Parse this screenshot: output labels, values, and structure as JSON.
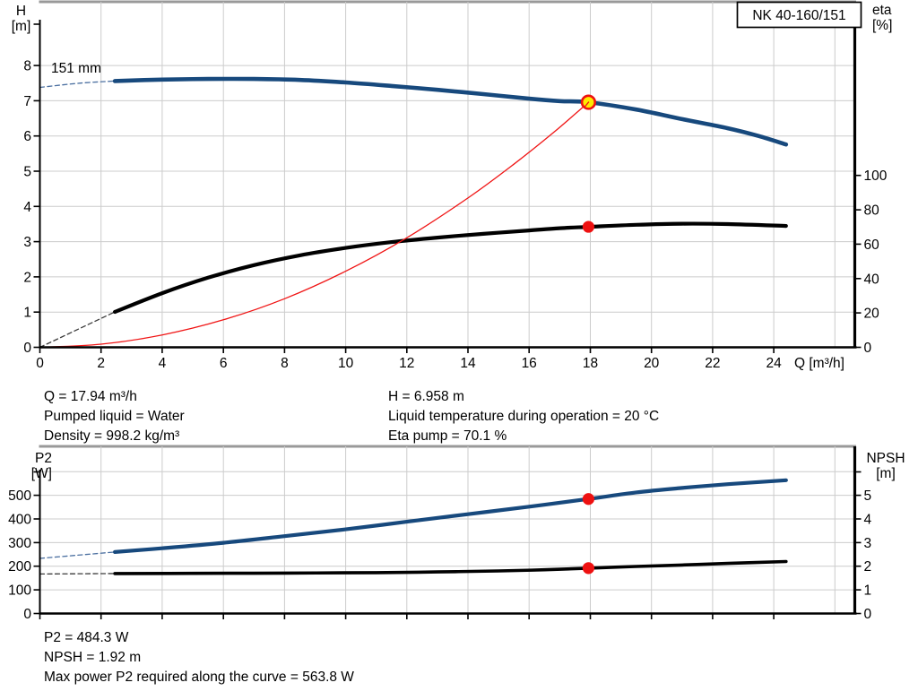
{
  "title_box": "NK 40-160/151",
  "colors": {
    "curve_blue": "#17497d",
    "dash_blue": "#4a6fa0",
    "curve_black": "#000000",
    "dash_black": "#3a3a3a",
    "curve_red": "#f01414",
    "marker_red": "#ee1111",
    "marker_yellow": "#ffeb00",
    "grid": "#cccccc",
    "axis": "#000000",
    "border_gray": "#999999"
  },
  "info_mid": {
    "left": [
      "Q = 17.94 m³/h",
      "Pumped liquid = Water",
      "Density = 998.2 kg/m³"
    ],
    "right": [
      "H = 6.958 m",
      "Liquid temperature during operation = 20 °C",
      "Eta pump = 70.1 %"
    ]
  },
  "info_bottom": [
    "P2 = 484.3 W",
    "NPSH = 1.92 m",
    "Max power P2 required along the curve = 563.8 W"
  ],
  "chart_data": [
    {
      "type": "line",
      "title": "NK 40-160/151",
      "impeller_label": "151 mm",
      "x_axis": {
        "label": "Q [m³/h]",
        "ticks": [
          0,
          2,
          4,
          6,
          8,
          10,
          12,
          14,
          16,
          18,
          20,
          22,
          24
        ],
        "range": [
          0,
          26.65
        ]
      },
      "y_left": {
        "label": "H [m]",
        "label_lines": [
          "H",
          "[m]"
        ],
        "ticks": [
          0,
          1,
          2,
          3,
          4,
          5,
          6,
          7,
          8
        ],
        "range": [
          0,
          9.81
        ]
      },
      "y_right": {
        "label": "eta [%]",
        "label_lines": [
          "eta",
          "[%]"
        ],
        "ticks": [
          0,
          20,
          40,
          60,
          80,
          100
        ],
        "range": [
          0,
          201
        ]
      },
      "grid": true,
      "series": [
        {
          "name": "head-curve-dashed",
          "axis": "left",
          "dashed": true,
          "color": "dash_blue",
          "width": 1.3,
          "points": [
            [
              0,
              7.38
            ],
            [
              1.3,
              7.5
            ],
            [
              2.45,
              7.56
            ]
          ]
        },
        {
          "name": "head-curve-151mm",
          "axis": "left",
          "dashed": false,
          "color": "curve_blue",
          "width": 4.6,
          "points": [
            [
              2.45,
              7.56
            ],
            [
              4,
              7.6
            ],
            [
              5.5,
              7.62
            ],
            [
              7,
              7.62
            ],
            [
              8.5,
              7.59
            ],
            [
              10,
              7.52
            ],
            [
              11.5,
              7.42
            ],
            [
              13,
              7.31
            ],
            [
              14.5,
              7.19
            ],
            [
              16,
              7.06
            ],
            [
              17,
              6.99
            ],
            [
              17.94,
              6.958
            ],
            [
              19.5,
              6.75
            ],
            [
              21,
              6.48
            ],
            [
              22.5,
              6.22
            ],
            [
              23.5,
              6.0
            ],
            [
              24.4,
              5.76
            ]
          ]
        },
        {
          "name": "eta-curve-dashed",
          "axis": "right",
          "dashed": true,
          "color": "dash_black",
          "width": 1.3,
          "points": [
            [
              0,
              0
            ],
            [
              2.45,
              20.6
            ]
          ]
        },
        {
          "name": "eta-curve",
          "axis": "right",
          "dashed": false,
          "color": "curve_black",
          "width": 4.2,
          "points": [
            [
              2.45,
              20.6
            ],
            [
              4,
              31.5
            ],
            [
              5.5,
              40.5
            ],
            [
              7,
              47.8
            ],
            [
              8.5,
              53.5
            ],
            [
              10,
              57.8
            ],
            [
              11.5,
              61.2
            ],
            [
              13,
              63.8
            ],
            [
              14.5,
              66
            ],
            [
              16,
              68
            ],
            [
              17,
              69.3
            ],
            [
              17.94,
              70.1
            ],
            [
              19.5,
              71.3
            ],
            [
              21,
              71.9
            ],
            [
              22.5,
              71.7
            ],
            [
              24.4,
              70.6
            ]
          ]
        },
        {
          "name": "system-curve",
          "axis": "left",
          "dashed": false,
          "color": "curve_red",
          "width": 1.3,
          "points": [
            [
              0,
              0
            ],
            [
              2,
              0.09
            ],
            [
              4,
              0.35
            ],
            [
              6,
              0.78
            ],
            [
              8,
              1.38
            ],
            [
              10,
              2.16
            ],
            [
              12,
              3.11
            ],
            [
              14,
              4.24
            ],
            [
              15.5,
              5.2
            ],
            [
              16.8,
              6.1
            ],
            [
              17.94,
              6.958
            ]
          ]
        }
      ],
      "markers": [
        {
          "name": "duty-point-head",
          "axis": "left",
          "x": 17.94,
          "y": 6.958,
          "style": "duty"
        },
        {
          "name": "duty-point-eta",
          "axis": "right",
          "x": 17.94,
          "y": 70.1,
          "style": "red"
        }
      ]
    },
    {
      "type": "line",
      "x_axis": {
        "label": "",
        "ticks": [
          0,
          2,
          4,
          6,
          8,
          10,
          12,
          14,
          16,
          18,
          20,
          22,
          24
        ],
        "range": [
          0,
          26.65
        ]
      },
      "y_left": {
        "label": "P2 [W]",
        "label_lines": [
          "P2",
          "[W]"
        ],
        "ticks": [
          0,
          100,
          200,
          300,
          400,
          500
        ],
        "range": [
          0,
          707
        ]
      },
      "y_right": {
        "label": "NPSH [m]",
        "label_lines": [
          "NPSH",
          "[m]"
        ],
        "ticks": [
          0,
          1,
          2,
          3,
          4,
          5
        ],
        "range": [
          0,
          7.07
        ]
      },
      "grid": true,
      "series": [
        {
          "name": "p2-curve-dashed",
          "axis": "left",
          "dashed": true,
          "color": "dash_blue",
          "width": 1.3,
          "points": [
            [
              0,
              233
            ],
            [
              2.45,
              260
            ]
          ]
        },
        {
          "name": "p2-curve",
          "axis": "left",
          "dashed": false,
          "color": "curve_blue",
          "width": 4.2,
          "points": [
            [
              2.45,
              260
            ],
            [
              4,
              276
            ],
            [
              6,
              299
            ],
            [
              8,
              327
            ],
            [
              10,
              356
            ],
            [
              12,
              388
            ],
            [
              14,
              420
            ],
            [
              16,
              452
            ],
            [
              17.94,
              484.3
            ],
            [
              19.5,
              512
            ],
            [
              21,
              531
            ],
            [
              22.5,
              547
            ],
            [
              24.4,
              563.8
            ]
          ]
        },
        {
          "name": "npsh-curve-dashed",
          "axis": "right",
          "dashed": true,
          "color": "dash_black",
          "width": 1.3,
          "points": [
            [
              0,
              1.67
            ],
            [
              2.45,
              1.69
            ]
          ]
        },
        {
          "name": "npsh-curve",
          "axis": "right",
          "dashed": false,
          "color": "curve_black",
          "width": 3.6,
          "points": [
            [
              2.45,
              1.69
            ],
            [
              5,
              1.7
            ],
            [
              8,
              1.71
            ],
            [
              11,
              1.73
            ],
            [
              13,
              1.76
            ],
            [
              15,
              1.8
            ],
            [
              16.5,
              1.85
            ],
            [
              17.94,
              1.92
            ],
            [
              19.5,
              1.99
            ],
            [
              21,
              2.05
            ],
            [
              22.5,
              2.12
            ],
            [
              24.4,
              2.2
            ]
          ]
        }
      ],
      "markers": [
        {
          "name": "duty-point-p2",
          "axis": "left",
          "x": 17.94,
          "y": 484.3,
          "style": "red"
        },
        {
          "name": "duty-point-npsh",
          "axis": "right",
          "x": 17.94,
          "y": 1.92,
          "style": "red"
        }
      ]
    }
  ]
}
